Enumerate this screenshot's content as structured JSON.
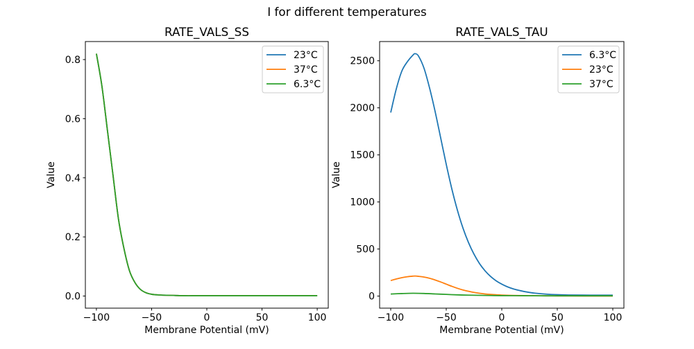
{
  "suptitle": "I for different temperatures",
  "colors": {
    "blue": "#1f77b4",
    "orange": "#ff7f0e",
    "green": "#2ca02c",
    "legend_border": "#cccccc",
    "text": "#000000"
  },
  "chart_data": [
    {
      "id": "ss",
      "type": "line",
      "title": "RATE_VALS_SS",
      "xlabel": "Membrane Potential (mV)",
      "ylabel": "Value",
      "xlim": [
        -110,
        110
      ],
      "ylim": [
        -0.041,
        0.861
      ],
      "xticks": [
        -100,
        -50,
        0,
        50,
        100
      ],
      "xtick_labels": [
        "−100",
        "−50",
        "0",
        "50",
        "100"
      ],
      "yticks": [
        0.0,
        0.2,
        0.4,
        0.6,
        0.8
      ],
      "ytick_labels": [
        "0.0",
        "0.2",
        "0.4",
        "0.6",
        "0.8"
      ],
      "grid": false,
      "legend_position": "upper right",
      "series": [
        {
          "name": "23°C",
          "color": "#1f77b4",
          "x": [
            -100,
            -95,
            -90,
            -85,
            -80,
            -75,
            -70,
            -65,
            -60,
            -55,
            -50,
            -45,
            -40,
            -30,
            -20,
            -10,
            0,
            20,
            40,
            60,
            80,
            100
          ],
          "y": [
            0.82,
            0.71,
            0.56,
            0.41,
            0.26,
            0.16,
            0.085,
            0.045,
            0.022,
            0.011,
            0.006,
            0.004,
            0.003,
            0.002,
            0.001,
            0.001,
            0.001,
            0.001,
            0.001,
            0.001,
            0.001,
            0.001
          ]
        },
        {
          "name": "37°C",
          "color": "#ff7f0e",
          "x": [
            -100,
            -95,
            -90,
            -85,
            -80,
            -75,
            -70,
            -65,
            -60,
            -55,
            -50,
            -45,
            -40,
            -30,
            -20,
            -10,
            0,
            20,
            40,
            60,
            80,
            100
          ],
          "y": [
            0.82,
            0.71,
            0.56,
            0.41,
            0.26,
            0.16,
            0.085,
            0.045,
            0.022,
            0.011,
            0.006,
            0.004,
            0.003,
            0.002,
            0.001,
            0.001,
            0.001,
            0.001,
            0.001,
            0.001,
            0.001,
            0.001
          ]
        },
        {
          "name": "6.3°C",
          "color": "#2ca02c",
          "x": [
            -100,
            -95,
            -90,
            -85,
            -80,
            -75,
            -70,
            -65,
            -60,
            -55,
            -50,
            -45,
            -40,
            -30,
            -20,
            -10,
            0,
            20,
            40,
            60,
            80,
            100
          ],
          "y": [
            0.82,
            0.71,
            0.56,
            0.41,
            0.26,
            0.16,
            0.085,
            0.045,
            0.022,
            0.011,
            0.006,
            0.004,
            0.003,
            0.002,
            0.001,
            0.001,
            0.001,
            0.001,
            0.001,
            0.001,
            0.001,
            0.001
          ]
        }
      ]
    },
    {
      "id": "tau",
      "type": "line",
      "title": "RATE_VALS_TAU",
      "xlabel": "Membrane Potential (mV)",
      "ylabel": "Value",
      "xlim": [
        -110,
        110
      ],
      "ylim": [
        -128,
        2704
      ],
      "xticks": [
        -100,
        -50,
        0,
        50,
        100
      ],
      "xtick_labels": [
        "−100",
        "−50",
        "0",
        "50",
        "100"
      ],
      "yticks": [
        0,
        500,
        1000,
        1500,
        2000,
        2500
      ],
      "ytick_labels": [
        "0",
        "500",
        "1000",
        "1500",
        "2000",
        "2500"
      ],
      "grid": false,
      "legend_position": "upper right",
      "series": [
        {
          "name": "6.3°C",
          "color": "#1f77b4",
          "x": [
            -100,
            -95,
            -90,
            -85,
            -80,
            -78,
            -75,
            -70,
            -65,
            -60,
            -55,
            -50,
            -45,
            -40,
            -35,
            -30,
            -25,
            -20,
            -15,
            -10,
            -5,
            0,
            5,
            10,
            15,
            20,
            25,
            30,
            40,
            50,
            60,
            80,
            100
          ],
          "y": [
            1950,
            2200,
            2390,
            2490,
            2560,
            2575,
            2550,
            2420,
            2210,
            1960,
            1680,
            1400,
            1140,
            915,
            725,
            570,
            445,
            345,
            268,
            208,
            162,
            127,
            99,
            78,
            62,
            49,
            39,
            31,
            21,
            15,
            12,
            10,
            10
          ]
        },
        {
          "name": "23°C",
          "color": "#ff7f0e",
          "x": [
            -100,
            -95,
            -90,
            -85,
            -80,
            -78,
            -75,
            -70,
            -65,
            -60,
            -55,
            -50,
            -45,
            -40,
            -35,
            -30,
            -25,
            -20,
            -15,
            -10,
            -5,
            0,
            10,
            20,
            30,
            40,
            50,
            60,
            80,
            100
          ],
          "y": [
            165,
            182,
            196,
            206,
            212,
            213,
            210,
            202,
            189,
            171,
            150,
            127,
            104,
            83,
            65,
            51,
            39,
            30,
            23,
            18,
            14,
            11,
            7,
            5,
            4,
            3,
            2,
            2,
            1,
            1
          ]
        },
        {
          "name": "37°C",
          "color": "#2ca02c",
          "x": [
            -100,
            -90,
            -80,
            -70,
            -60,
            -50,
            -40,
            -30,
            -20,
            -10,
            0,
            20,
            40,
            60,
            80,
            100
          ],
          "y": [
            22,
            27,
            30,
            28,
            23,
            18,
            13,
            10,
            8,
            6,
            5,
            4,
            3,
            3,
            3,
            3
          ]
        }
      ]
    }
  ]
}
